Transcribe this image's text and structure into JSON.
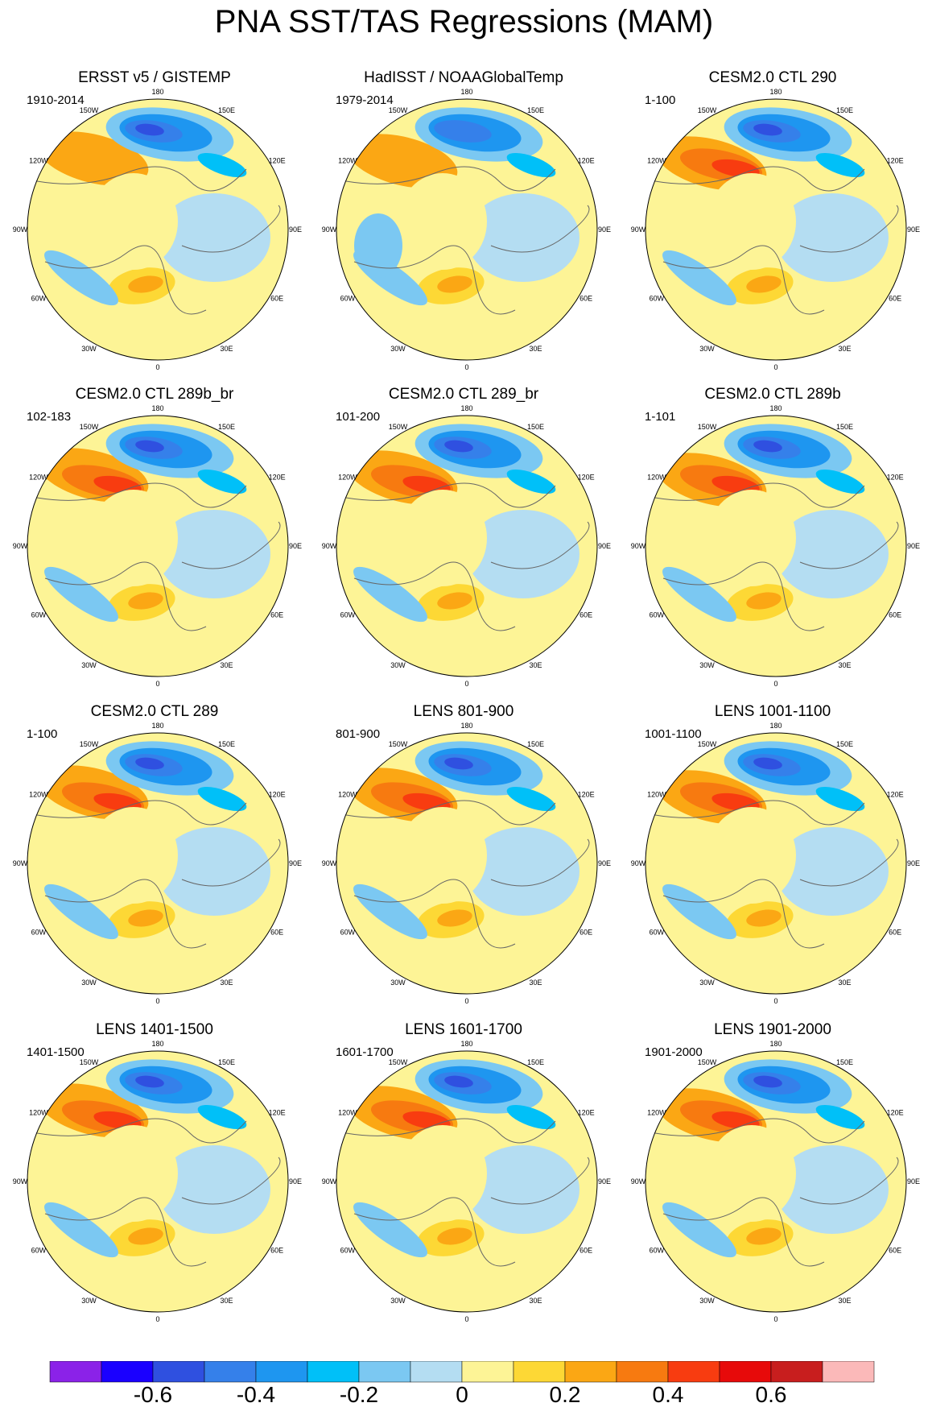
{
  "title": "PNA SST/TAS Regressions (MAM)",
  "longitude_labels": [
    "180",
    "150E",
    "120E",
    "90E",
    "60E",
    "30E",
    "0",
    "30W",
    "60W",
    "90W",
    "120W",
    "150W"
  ],
  "panels": [
    {
      "title": "ERSST v5 / GISTEMP",
      "period": "1910-2014",
      "variant": "obs1"
    },
    {
      "title": "HadISST / NOAAGlobalTemp",
      "period": "1979-2014",
      "variant": "obs2"
    },
    {
      "title": "CESM2.0 CTL 290",
      "period": "1-100",
      "variant": "model"
    },
    {
      "title": "CESM2.0 CTL 289b_br",
      "period": "102-183",
      "variant": "model"
    },
    {
      "title": "CESM2.0 CTL 289_br",
      "period": "101-200",
      "variant": "model"
    },
    {
      "title": "CESM2.0 CTL 289b",
      "period": "1-101",
      "variant": "model"
    },
    {
      "title": "CESM2.0 CTL 289",
      "period": "1-100",
      "variant": "model"
    },
    {
      "title": "LENS 801-900",
      "period": "801-900",
      "variant": "model"
    },
    {
      "title": "LENS 1001-1100",
      "period": "1001-1100",
      "variant": "model"
    },
    {
      "title": "LENS 1401-1500",
      "period": "1401-1500",
      "variant": "model"
    },
    {
      "title": "LENS 1601-1700",
      "period": "1601-1700",
      "variant": "model"
    },
    {
      "title": "LENS 1901-2000",
      "period": "1901-2000",
      "variant": "model"
    }
  ],
  "colorbar": {
    "colors": [
      "#8b22e8",
      "#1a00ff",
      "#2f50e0",
      "#3580ea",
      "#1e96f0",
      "#00c0f8",
      "#7bc8f2",
      "#b4ddf2",
      "#fdf496",
      "#fdd835",
      "#fba714",
      "#f77a10",
      "#f83c10",
      "#e70a0a",
      "#c81e1e",
      "#fbb9b9"
    ],
    "labels": [
      "-0.6",
      "-0.4",
      "-0.2",
      "0",
      "0.2",
      "0.4",
      "0.6"
    ]
  }
}
